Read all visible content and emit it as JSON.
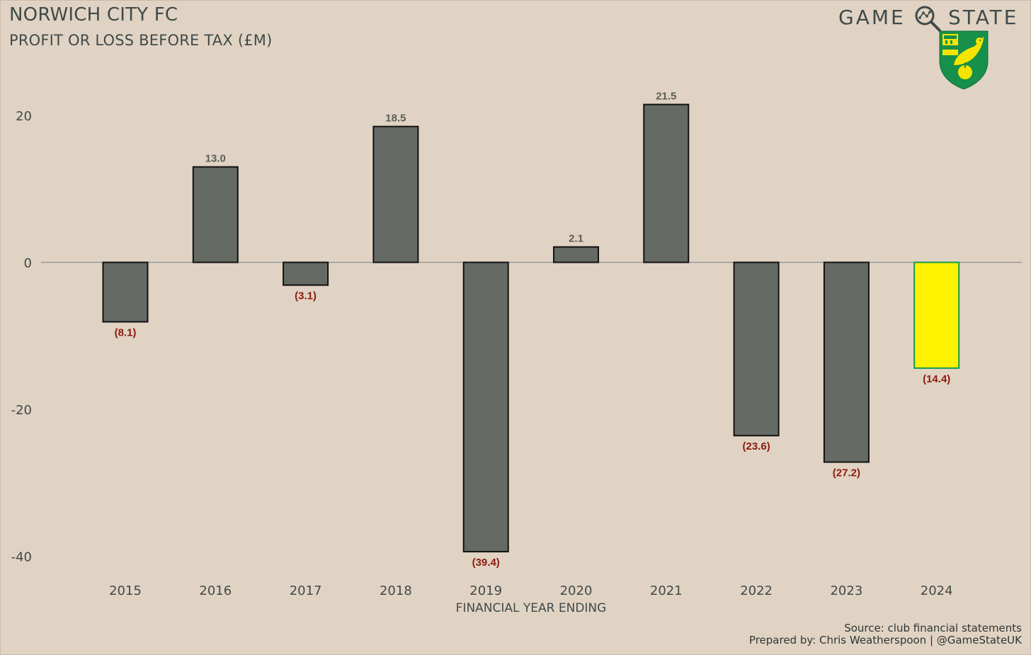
{
  "header": {
    "title": "NORWICH CITY FC",
    "subtitle": "PROFIT OR LOSS BEFORE TAX (£M)"
  },
  "brand": {
    "word1": "GAME",
    "word2": "STATE",
    "icon": "magnifier-network-icon",
    "crest": "norwich-canary-crest-icon"
  },
  "chart_data": {
    "type": "bar",
    "title": "",
    "xlabel": "FINANCIAL YEAR ENDING",
    "ylabel": "",
    "categories": [
      "2015",
      "2016",
      "2017",
      "2018",
      "2019",
      "2020",
      "2021",
      "2022",
      "2023",
      "2024"
    ],
    "values": [
      -8.1,
      13.0,
      -3.1,
      18.5,
      -39.4,
      2.1,
      21.5,
      -23.6,
      -27.2,
      -14.4
    ],
    "data_labels": [
      "(8.1)",
      "13.0",
      "(3.1)",
      "18.5",
      "(39.4)",
      "2.1",
      "21.5",
      "(23.6)",
      "(27.2)",
      "(14.4)"
    ],
    "highlight_category": "2024",
    "yticks": [
      -40,
      -20,
      0,
      20
    ],
    "ytick_labels": [
      "-40",
      "-20",
      "0",
      "20"
    ],
    "ylim": [
      -42,
      25
    ],
    "grid": false,
    "colors": {
      "bar": "#656a65",
      "highlight": "#fff200",
      "highlight_stroke": "#169a4a",
      "positive_label": "#5a5f5a",
      "negative_label": "#8b1b10",
      "zero_line": "#9a9a97",
      "background": "#e1d3c3"
    }
  },
  "footer": {
    "source": "Source: club financial statements",
    "credit": "Prepared by: Chris Weatherspoon | @GameStateUK"
  }
}
